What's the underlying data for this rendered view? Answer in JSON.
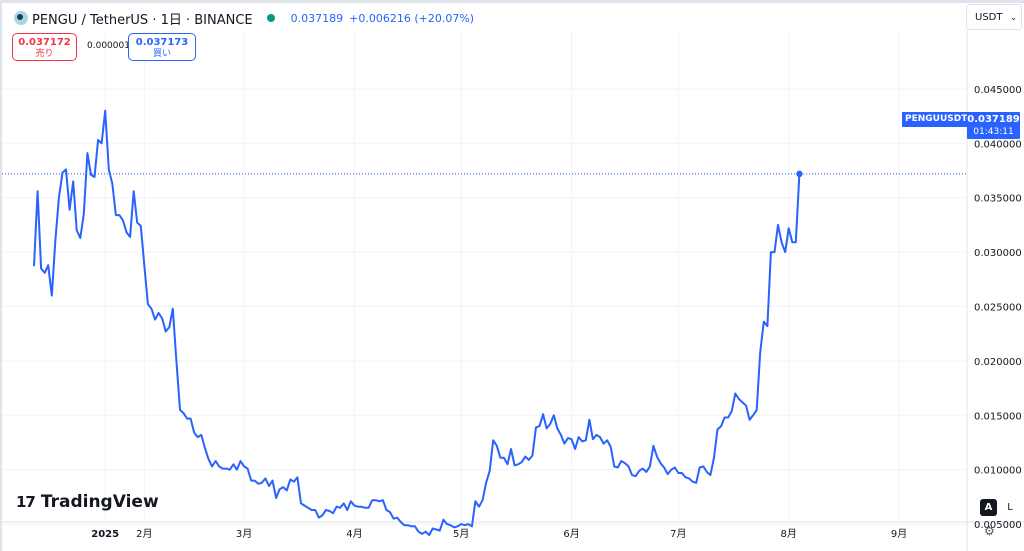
{
  "legend": {
    "symbol": "PENGU / TetherUS · 1日 · BINANCE",
    "price": "0.037189",
    "change": "+0.006216 (+20.07%)"
  },
  "trade": {
    "sell_price": "0.037172",
    "sell_label": "売り",
    "spread": "0.000001",
    "buy_price": "0.037173",
    "buy_label": "買い"
  },
  "currency": {
    "label": "USDT"
  },
  "price_label": {
    "symbol": "PENGUUSDT",
    "price": "0.037189",
    "countdown": "01:43:11"
  },
  "brand": {
    "name": "TradingView"
  },
  "buttons": {
    "auto": "A",
    "log": "L"
  },
  "colors": {
    "line": "#2962ff",
    "up": "#089981",
    "down": "#f23645"
  },
  "chart_data": {
    "type": "line",
    "y_ticks": [
      "0.005000",
      "0.010000",
      "0.015000",
      "0.020000",
      "0.025000",
      "0.030000",
      "0.035000",
      "0.040000",
      "0.045000"
    ],
    "x_ticks": [
      {
        "label": "2025",
        "day": 20
      },
      {
        "label": "2月",
        "day": 31
      },
      {
        "label": "3月",
        "day": 59
      },
      {
        "label": "4月",
        "day": 90
      },
      {
        "label": "5月",
        "day": 120
      },
      {
        "label": "6月",
        "day": 151
      },
      {
        "label": "7月",
        "day": 181
      },
      {
        "label": "8月",
        "day": 212
      },
      {
        "label": "9月",
        "day": 243
      }
    ],
    "ylim": [
      0.0,
      0.0455
    ],
    "start_date": "2024-12-17",
    "y": [
      0.0287,
      0.0356,
      0.0285,
      0.0281,
      0.0288,
      0.026,
      0.0311,
      0.035,
      0.0373,
      0.0376,
      0.0339,
      0.0365,
      0.032,
      0.0313,
      0.0335,
      0.0391,
      0.0371,
      0.0369,
      0.0403,
      0.04,
      0.043,
      0.0376,
      0.0363,
      0.0334,
      0.0334,
      0.0329,
      0.0318,
      0.0314,
      0.0356,
      0.0327,
      0.0324,
      0.0287,
      0.0252,
      0.0248,
      0.0238,
      0.0244,
      0.0239,
      0.0227,
      0.0231,
      0.0248,
      0.02,
      0.0155,
      0.0152,
      0.0147,
      0.0147,
      0.0134,
      0.013,
      0.0132,
      0.012,
      0.011,
      0.0103,
      0.0108,
      0.0103,
      0.0101,
      0.0101,
      0.01,
      0.0105,
      0.01,
      0.0108,
      0.0103,
      0.0101,
      0.009,
      0.009,
      0.0087,
      0.0088,
      0.0092,
      0.0085,
      0.009,
      0.0074,
      0.0082,
      0.0084,
      0.0081,
      0.0091,
      0.0089,
      0.0093,
      0.0069,
      0.0067,
      0.0065,
      0.0063,
      0.0063,
      0.0056,
      0.0058,
      0.0063,
      0.0062,
      0.006,
      0.0066,
      0.0065,
      0.0069,
      0.0063,
      0.0071,
      0.0067,
      0.0066,
      0.0066,
      0.0065,
      0.0065,
      0.0072,
      0.0072,
      0.0071,
      0.0072,
      0.0063,
      0.0061,
      0.0055,
      0.0056,
      0.0052,
      0.0049,
      0.0049,
      0.0048,
      0.0048,
      0.0043,
      0.0041,
      0.0043,
      0.004,
      0.0046,
      0.0045,
      0.0044,
      0.0054,
      0.005,
      0.0049,
      0.0047,
      0.0048,
      0.005,
      0.0049,
      0.005,
      0.0048,
      0.0071,
      0.0066,
      0.0072,
      0.0088,
      0.0099,
      0.0127,
      0.0122,
      0.0111,
      0.0111,
      0.0105,
      0.0119,
      0.0104,
      0.0105,
      0.0107,
      0.0112,
      0.0109,
      0.0113,
      0.0139,
      0.014,
      0.0151,
      0.0138,
      0.0142,
      0.015,
      0.0138,
      0.0132,
      0.0124,
      0.0129,
      0.0128,
      0.0119,
      0.013,
      0.0126,
      0.0127,
      0.0146,
      0.0128,
      0.0132,
      0.013,
      0.0124,
      0.0127,
      0.0121,
      0.0103,
      0.0102,
      0.0108,
      0.0106,
      0.0103,
      0.0095,
      0.0094,
      0.0099,
      0.0101,
      0.0098,
      0.0103,
      0.0122,
      0.0112,
      0.0106,
      0.0102,
      0.0096,
      0.01,
      0.0102,
      0.0097,
      0.0097,
      0.0093,
      0.0092,
      0.0089,
      0.0088,
      0.0102,
      0.0103,
      0.0098,
      0.0095,
      0.0111,
      0.0137,
      0.014,
      0.0148,
      0.0148,
      0.0154,
      0.017,
      0.0165,
      0.0162,
      0.0159,
      0.0146,
      0.015,
      0.0155,
      0.0208,
      0.0236,
      0.0232,
      0.03,
      0.03,
      0.0325,
      0.0309,
      0.03,
      0.0322,
      0.0309,
      0.0309,
      0.0372
    ],
    "last_value": 0.037189,
    "grid": true
  }
}
